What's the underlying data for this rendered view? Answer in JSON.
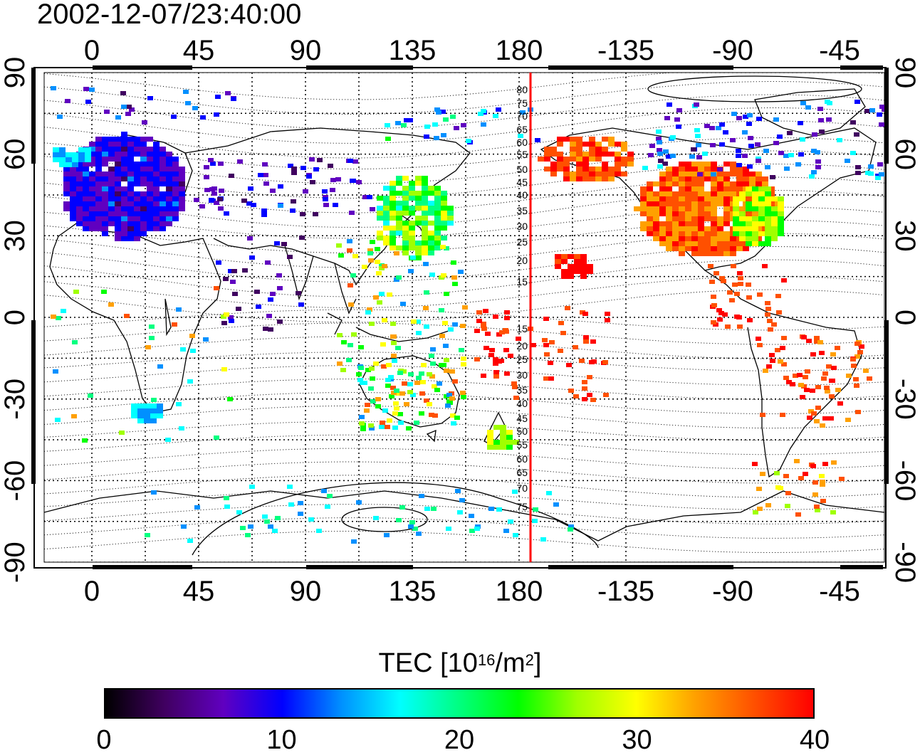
{
  "title": "2002-12-07/23:40:00",
  "map": {
    "lon_ticks": [
      "0",
      "45",
      "90",
      "135",
      "180",
      "-135",
      "-90",
      "-45"
    ],
    "lat_ticks": [
      "90",
      "60",
      "30",
      "0",
      "-30",
      "-60",
      "-90"
    ],
    "mlat_labels": [
      "80",
      "75",
      "70",
      "65",
      "60",
      "55",
      "50",
      "45",
      "40",
      "35",
      "30",
      "25",
      "20",
      "15",
      "15",
      "20",
      "25",
      "30",
      "35",
      "40",
      "45",
      "50",
      "55",
      "60",
      "65",
      "70",
      "75"
    ],
    "meridian_line_color": "#ff0000",
    "meridian_longitude": -175
  },
  "colorbar": {
    "label_prefix": "TEC  [10",
    "label_exp1": "16",
    "label_mid": "/m",
    "label_exp2": "2",
    "label_suffix": "]",
    "ticks": [
      "0",
      "10",
      "20",
      "30",
      "40"
    ],
    "range": [
      0,
      40
    ],
    "colors": [
      "#000000",
      "#400060",
      "#6000c0",
      "#0000ff",
      "#0090ff",
      "#00ffff",
      "#00ff80",
      "#00ff00",
      "#a0ff00",
      "#ffff00",
      "#ffa000",
      "#ff5000",
      "#ff0000"
    ]
  }
}
